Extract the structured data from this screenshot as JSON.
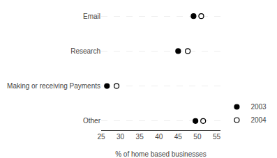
{
  "chart_data": {
    "type": "dot",
    "categories": [
      "Other",
      "Making or receiving Payments",
      "Research",
      "Email"
    ],
    "series": [
      {
        "name": "2003",
        "color": "#000000",
        "marker": "circle",
        "values": [
          49.5,
          26.5,
          45.0,
          49.0
        ]
      },
      {
        "name": "2004",
        "color": "#000000",
        "marker": "circle-open",
        "values": [
          51.5,
          29.0,
          47.5,
          51.0
        ]
      }
    ],
    "xlabel": "% of home based businesses",
    "xlim": [
      25,
      56
    ],
    "xticks": [
      25,
      30,
      35,
      40,
      45,
      50,
      55
    ],
    "grid": true,
    "legend": "lower right"
  }
}
